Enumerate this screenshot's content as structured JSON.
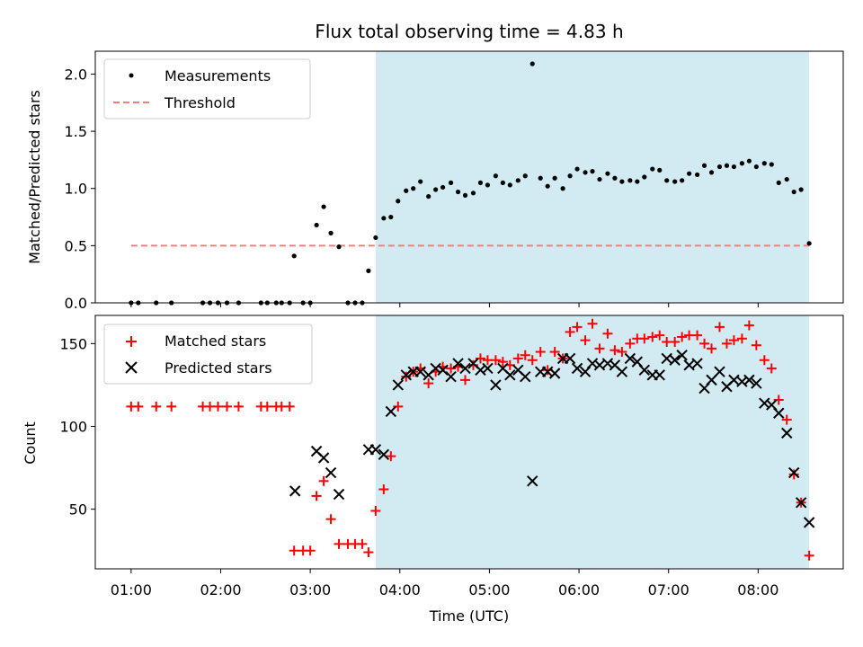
{
  "chart_data": [
    {
      "type": "scatter",
      "title": "Flux total observing time = 4.83 h",
      "xlabel": "",
      "ylabel": "Matched/Predicted stars",
      "x_unit": "hours UTC",
      "xlim": [
        0.6,
        8.95
      ],
      "ylim": [
        0.0,
        2.2
      ],
      "yticks": [
        "0.0",
        "0.5",
        "1.0",
        "1.5",
        "2.0"
      ],
      "shaded_region": [
        3.73,
        8.57
      ],
      "shaded_color": "#add8e6",
      "legend_position": "top-left",
      "series": [
        {
          "name": "Measurements",
          "marker": "dot",
          "color": "#000000",
          "points": [
            [
              1.0,
              0.0
            ],
            [
              1.08,
              0.0
            ],
            [
              1.28,
              0.0
            ],
            [
              1.45,
              0.0
            ],
            [
              1.8,
              0.0
            ],
            [
              1.88,
              0.0
            ],
            [
              1.97,
              0.0
            ],
            [
              2.07,
              0.0
            ],
            [
              2.2,
              0.0
            ],
            [
              2.45,
              0.0
            ],
            [
              2.52,
              0.0
            ],
            [
              2.62,
              0.0
            ],
            [
              2.68,
              0.0
            ],
            [
              2.77,
              0.0
            ],
            [
              2.82,
              0.41
            ],
            [
              2.92,
              0.0
            ],
            [
              3.0,
              0.0
            ],
            [
              3.07,
              0.68
            ],
            [
              3.15,
              0.84
            ],
            [
              3.23,
              0.61
            ],
            [
              3.32,
              0.49
            ],
            [
              3.42,
              0.0
            ],
            [
              3.5,
              0.0
            ],
            [
              3.58,
              0.0
            ],
            [
              3.65,
              0.28
            ],
            [
              3.73,
              0.57
            ],
            [
              3.82,
              0.74
            ],
            [
              3.9,
              0.75
            ],
            [
              3.98,
              0.89
            ],
            [
              4.07,
              0.98
            ],
            [
              4.15,
              1.0
            ],
            [
              4.23,
              1.06
            ],
            [
              4.32,
              0.93
            ],
            [
              4.4,
              0.99
            ],
            [
              4.48,
              1.01
            ],
            [
              4.57,
              1.05
            ],
            [
              4.65,
              0.97
            ],
            [
              4.73,
              0.94
            ],
            [
              4.82,
              0.96
            ],
            [
              4.9,
              1.05
            ],
            [
              4.98,
              1.03
            ],
            [
              5.07,
              1.11
            ],
            [
              5.15,
              1.05
            ],
            [
              5.23,
              1.03
            ],
            [
              5.32,
              1.07
            ],
            [
              5.4,
              1.11
            ],
            [
              5.48,
              2.09
            ],
            [
              5.57,
              1.09
            ],
            [
              5.65,
              1.02
            ],
            [
              5.73,
              1.09
            ],
            [
              5.82,
              1.0
            ],
            [
              5.9,
              1.11
            ],
            [
              5.98,
              1.17
            ],
            [
              6.07,
              1.14
            ],
            [
              6.15,
              1.15
            ],
            [
              6.23,
              1.08
            ],
            [
              6.32,
              1.13
            ],
            [
              6.4,
              1.09
            ],
            [
              6.48,
              1.06
            ],
            [
              6.57,
              1.07
            ],
            [
              6.65,
              1.06
            ],
            [
              6.73,
              1.1
            ],
            [
              6.82,
              1.17
            ],
            [
              6.9,
              1.16
            ],
            [
              6.98,
              1.07
            ],
            [
              7.07,
              1.06
            ],
            [
              7.15,
              1.07
            ],
            [
              7.23,
              1.13
            ],
            [
              7.32,
              1.12
            ],
            [
              7.4,
              1.2
            ],
            [
              7.48,
              1.14
            ],
            [
              7.57,
              1.19
            ],
            [
              7.65,
              1.2
            ],
            [
              7.73,
              1.19
            ],
            [
              7.82,
              1.22
            ],
            [
              7.9,
              1.24
            ],
            [
              7.98,
              1.19
            ],
            [
              8.07,
              1.22
            ],
            [
              8.15,
              1.21
            ],
            [
              8.23,
              1.05
            ],
            [
              8.32,
              1.08
            ],
            [
              8.4,
              0.97
            ],
            [
              8.48,
              0.99
            ],
            [
              8.57,
              0.52
            ]
          ]
        },
        {
          "name": "Threshold",
          "style": "dashed-line",
          "color": "#f08080",
          "points": [
            [
              1.0,
              0.5
            ],
            [
              8.57,
              0.5
            ]
          ]
        }
      ]
    },
    {
      "type": "scatter",
      "title": "",
      "xlabel": "Time (UTC)",
      "ylabel": "Count",
      "x_unit": "hours UTC",
      "xlim": [
        0.6,
        8.95
      ],
      "ylim": [
        14,
        167
      ],
      "xticks": [
        "01:00",
        "02:00",
        "03:00",
        "04:00",
        "05:00",
        "06:00",
        "07:00",
        "08:00"
      ],
      "yticks": [
        "50",
        "100",
        "150"
      ],
      "shaded_region": [
        3.73,
        8.57
      ],
      "shaded_color": "#add8e6",
      "legend_position": "top-left",
      "series": [
        {
          "name": "Matched stars",
          "marker": "plus",
          "color": "#ff0000",
          "points": [
            [
              1.0,
              112
            ],
            [
              1.08,
              112
            ],
            [
              1.28,
              112
            ],
            [
              1.45,
              112
            ],
            [
              1.8,
              112
            ],
            [
              1.88,
              112
            ],
            [
              1.97,
              112
            ],
            [
              2.07,
              112
            ],
            [
              2.2,
              112
            ],
            [
              2.45,
              112
            ],
            [
              2.52,
              112
            ],
            [
              2.62,
              112
            ],
            [
              2.68,
              112
            ],
            [
              2.77,
              112
            ],
            [
              2.82,
              25
            ],
            [
              2.92,
              25
            ],
            [
              3.0,
              25
            ],
            [
              3.07,
              58
            ],
            [
              3.15,
              67
            ],
            [
              3.23,
              44
            ],
            [
              3.32,
              29
            ],
            [
              3.42,
              29
            ],
            [
              3.5,
              29
            ],
            [
              3.58,
              29
            ],
            [
              3.65,
              24
            ],
            [
              3.73,
              49
            ],
            [
              3.82,
              62
            ],
            [
              3.9,
              82
            ],
            [
              3.98,
              112
            ],
            [
              4.07,
              130
            ],
            [
              4.15,
              133
            ],
            [
              4.23,
              135
            ],
            [
              4.32,
              126
            ],
            [
              4.4,
              133
            ],
            [
              4.48,
              136
            ],
            [
              4.57,
              135
            ],
            [
              4.65,
              136
            ],
            [
              4.73,
              128
            ],
            [
              4.82,
              137
            ],
            [
              4.9,
              141
            ],
            [
              4.98,
              140
            ],
            [
              5.07,
              140
            ],
            [
              5.15,
              139
            ],
            [
              5.23,
              137
            ],
            [
              5.32,
              141
            ],
            [
              5.4,
              143
            ],
            [
              5.48,
              140
            ],
            [
              5.57,
              145
            ],
            [
              5.65,
              134
            ],
            [
              5.73,
              145
            ],
            [
              5.82,
              141
            ],
            [
              5.9,
              157
            ],
            [
              5.98,
              160
            ],
            [
              6.07,
              152
            ],
            [
              6.15,
              162
            ],
            [
              6.23,
              147
            ],
            [
              6.32,
              156
            ],
            [
              6.4,
              146
            ],
            [
              6.48,
              145
            ],
            [
              6.57,
              150
            ],
            [
              6.65,
              153
            ],
            [
              6.73,
              153
            ],
            [
              6.82,
              154
            ],
            [
              6.9,
              155
            ],
            [
              6.98,
              151
            ],
            [
              7.07,
              151
            ],
            [
              7.15,
              154
            ],
            [
              7.23,
              155
            ],
            [
              7.32,
              155
            ],
            [
              7.4,
              150
            ],
            [
              7.48,
              147
            ],
            [
              7.57,
              160
            ],
            [
              7.65,
              150
            ],
            [
              7.73,
              152
            ],
            [
              7.82,
              153
            ],
            [
              7.9,
              161
            ],
            [
              7.98,
              149
            ],
            [
              8.07,
              140
            ],
            [
              8.15,
              135
            ],
            [
              8.23,
              116
            ],
            [
              8.32,
              104
            ],
            [
              8.4,
              71
            ],
            [
              8.48,
              54
            ],
            [
              8.57,
              22
            ]
          ]
        },
        {
          "name": "Predicted stars",
          "marker": "x",
          "color": "#000000",
          "points": [
            [
              2.83,
              61
            ],
            [
              3.07,
              85
            ],
            [
              3.15,
              81
            ],
            [
              3.23,
              72
            ],
            [
              3.32,
              59
            ],
            [
              3.65,
              86
            ],
            [
              3.73,
              86
            ],
            [
              3.82,
              83
            ],
            [
              3.9,
              109
            ],
            [
              3.98,
              125
            ],
            [
              4.07,
              131
            ],
            [
              4.15,
              133
            ],
            [
              4.23,
              133
            ],
            [
              4.32,
              131
            ],
            [
              4.4,
              135
            ],
            [
              4.48,
              134
            ],
            [
              4.57,
              130
            ],
            [
              4.65,
              138
            ],
            [
              4.73,
              135
            ],
            [
              4.82,
              138
            ],
            [
              4.9,
              134
            ],
            [
              4.98,
              135
            ],
            [
              5.07,
              125
            ],
            [
              5.15,
              135
            ],
            [
              5.23,
              131
            ],
            [
              5.32,
              134
            ],
            [
              5.4,
              130
            ],
            [
              5.48,
              67
            ],
            [
              5.57,
              133
            ],
            [
              5.65,
              133
            ],
            [
              5.73,
              132
            ],
            [
              5.82,
              141
            ],
            [
              5.9,
              141
            ],
            [
              5.98,
              135
            ],
            [
              6.07,
              133
            ],
            [
              6.15,
              138
            ],
            [
              6.23,
              137
            ],
            [
              6.32,
              138
            ],
            [
              6.4,
              137
            ],
            [
              6.48,
              133
            ],
            [
              6.57,
              141
            ],
            [
              6.65,
              139
            ],
            [
              6.73,
              134
            ],
            [
              6.82,
              131
            ],
            [
              6.9,
              131
            ],
            [
              6.98,
              141
            ],
            [
              7.07,
              140
            ],
            [
              7.15,
              143
            ],
            [
              7.23,
              137
            ],
            [
              7.32,
              138
            ],
            [
              7.4,
              123
            ],
            [
              7.48,
              128
            ],
            [
              7.57,
              133
            ],
            [
              7.65,
              124
            ],
            [
              7.73,
              128
            ],
            [
              7.82,
              127
            ],
            [
              7.9,
              128
            ],
            [
              7.98,
              126
            ],
            [
              8.07,
              114
            ],
            [
              8.15,
              113
            ],
            [
              8.23,
              108
            ],
            [
              8.32,
              96
            ],
            [
              8.4,
              72
            ],
            [
              8.48,
              54
            ],
            [
              8.57,
              42
            ]
          ]
        }
      ]
    }
  ]
}
